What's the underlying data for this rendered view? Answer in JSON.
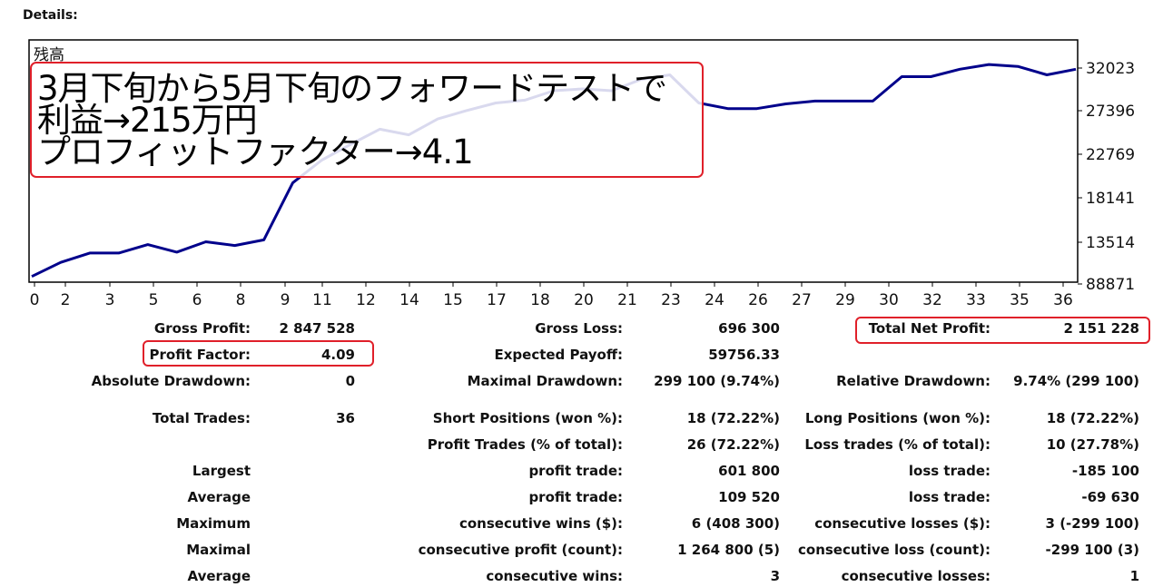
{
  "details_title": "Details:",
  "chart_data": {
    "type": "line",
    "y_axis_label": "残高",
    "y_ticks": [
      "32023",
      "27396",
      "22769",
      "18141",
      "13514",
      "88871"
    ],
    "x_ticks": [
      "0",
      "2",
      "3",
      "5",
      "6",
      "8",
      "9",
      "11",
      "12",
      "14",
      "15",
      "17",
      "18",
      "20",
      "21",
      "23",
      "24",
      "26",
      "27",
      "29",
      "30",
      "32",
      "33",
      "35",
      "36"
    ],
    "series": [
      {
        "color": "#00008b",
        "x": [
          0,
          1,
          2,
          3,
          4,
          5,
          6,
          7,
          8,
          9,
          10,
          11,
          12,
          13,
          14,
          15,
          16,
          17,
          18,
          19,
          20,
          21,
          22,
          23,
          24,
          25,
          26,
          27,
          28,
          29,
          30,
          31,
          32,
          33,
          34,
          35,
          36
        ],
        "y": [
          9800,
          11300,
          12300,
          12300,
          13200,
          12400,
          13500,
          13100,
          13700,
          19800,
          22200,
          23900,
          25500,
          24900,
          26600,
          27500,
          28300,
          28600,
          29600,
          29800,
          29600,
          30800,
          31300,
          28300,
          27700,
          27700,
          28200,
          28500,
          28500,
          28500,
          31100,
          31100,
          31900,
          32400,
          32200,
          31300,
          31900
        ]
      }
    ]
  },
  "overlay_lines": [
    "3月下旬から5月下旬のフォワードテストで",
    "利益→215万円",
    "プロフィットファクター→4.1"
  ],
  "stats": {
    "gross_profit_label": "Gross Profit:",
    "gross_profit": "2 847 528",
    "gross_loss_label": "Gross Loss:",
    "gross_loss": "696 300",
    "total_net_profit_label": "Total Net Profit:",
    "total_net_profit": "2 151 228",
    "profit_factor_label": "Profit Factor:",
    "profit_factor": "4.09",
    "expected_payoff_label": "Expected Payoff:",
    "expected_payoff": "59756.33",
    "absolute_drawdown_label": "Absolute Drawdown:",
    "absolute_drawdown": "0",
    "maximal_drawdown_label": "Maximal Drawdown:",
    "maximal_drawdown": "299 100 (9.74%)",
    "relative_drawdown_label": "Relative Drawdown:",
    "relative_drawdown": "9.74% (299 100)",
    "total_trades_label": "Total Trades:",
    "total_trades": "36",
    "short_positions_label": "Short Positions (won %):",
    "short_positions": "18 (72.22%)",
    "long_positions_label": "Long Positions (won %):",
    "long_positions": "18 (72.22%)",
    "profit_trades_label": "Profit Trades (% of total):",
    "profit_trades": "26 (72.22%)",
    "loss_trades_label": "Loss trades (% of total):",
    "loss_trades": "10 (27.78%)",
    "largest_label": "Largest",
    "largest_profit_label": "profit trade:",
    "largest_profit": "601 800",
    "largest_loss_label": "loss trade:",
    "largest_loss": "-185 100",
    "average_label": "Average",
    "average_profit_label": "profit trade:",
    "average_profit": "109 520",
    "average_loss_label": "loss trade:",
    "average_loss": "-69 630",
    "maximum_label": "Maximum",
    "max_consec_wins_label": "consecutive wins ($):",
    "max_consec_wins": "6 (408 300)",
    "max_consec_losses_label": "consecutive losses ($):",
    "max_consec_losses": "3 (-299 100)",
    "maximal_label": "Maximal",
    "maximal_consec_profit_label": "consecutive profit (count):",
    "maximal_consec_profit": "1 264 800 (5)",
    "maximal_consec_loss_label": "consecutive loss (count):",
    "maximal_consec_loss": "-299 100 (3)",
    "average2_label": "Average",
    "avg_consec_wins_label": "consecutive wins:",
    "avg_consec_wins": "3",
    "avg_consec_losses_label": "consecutive losses:",
    "avg_consec_losses": "1"
  }
}
